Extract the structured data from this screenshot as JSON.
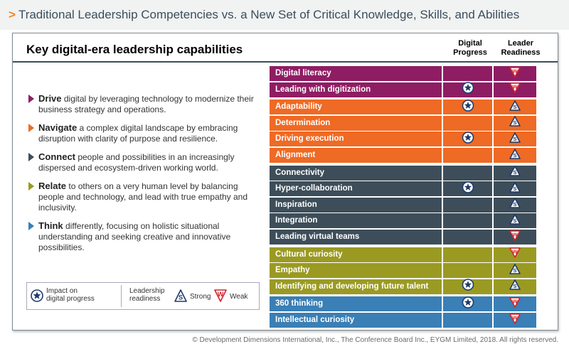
{
  "header": {
    "chevron": ">",
    "title": "Traditional Leadership Competencies vs. a New Set of Critical Knowledge, Skills, and Abilities"
  },
  "panel": {
    "title": "Key digital-era leadership capabilities",
    "col_digital_1": "Digital",
    "col_digital_2": "Progress",
    "col_leader_1": "Leader",
    "col_leader_2": "Readiness"
  },
  "colors": {
    "purple": "#8f1d63",
    "orange": "#ef6a24",
    "slate": "#3d4e5a",
    "olive": "#9a9a23",
    "blue": "#3a7fb5"
  },
  "bullets": [
    {
      "bold": "Drive",
      "text": " digital by leveraging technology to modernize their business strategy and operations.",
      "color": "#8f1d63"
    },
    {
      "bold": "Navigate",
      "text": " a complex digital landscape by embracing disruption with clarity of purpose and resilience.",
      "color": "#ef6a24"
    },
    {
      "bold": "Connect",
      "text": " people and possibilities in an increasingly dispersed and ecosystem-driven working world.",
      "color": "#3d4e5a"
    },
    {
      "bold": "Relate",
      "text": " to others on a very human level by balancing people and technology, and lead with true empathy and inclusivity.",
      "color": "#9a9a23"
    },
    {
      "bold": "Think",
      "text": " differently, focusing on holistic situational understanding and seeking creative and innovative possibilities.",
      "color": "#3a7fb5"
    }
  ],
  "legend": {
    "impact_1": "Impact on",
    "impact_2": "digital progress",
    "readiness_1": "Leadership",
    "readiness_2": "readiness",
    "strong": "Strong",
    "weak": "Weak",
    "strong_letter": "S",
    "weak_letter": "W"
  },
  "rows": [
    {
      "label": "Digital literacy",
      "group": "purple",
      "star": false,
      "readiness": "weak"
    },
    {
      "label": "Leading with digitization",
      "group": "purple",
      "star": true,
      "readiness": "weak"
    },
    {
      "label": "Adaptability",
      "group": "orange",
      "star": true,
      "readiness": "strong"
    },
    {
      "label": "Determination",
      "group": "orange",
      "star": false,
      "readiness": "strong"
    },
    {
      "label": "Driving execution",
      "group": "orange",
      "star": true,
      "readiness": "strong"
    },
    {
      "label": "Alignment",
      "group": "orange",
      "star": false,
      "readiness": "strong"
    },
    {
      "label": "Connectivity",
      "group": "slate",
      "star": false,
      "readiness": "strong"
    },
    {
      "label": "Hyper-collaboration",
      "group": "slate",
      "star": true,
      "readiness": "strong"
    },
    {
      "label": "Inspiration",
      "group": "slate",
      "star": false,
      "readiness": "strong"
    },
    {
      "label": "Integration",
      "group": "slate",
      "star": false,
      "readiness": "strong"
    },
    {
      "label": "Leading virtual teams",
      "group": "slate",
      "star": false,
      "readiness": "weak"
    },
    {
      "label": "Cultural curiosity",
      "group": "olive",
      "star": false,
      "readiness": "weak"
    },
    {
      "label": "Empathy",
      "group": "olive",
      "star": false,
      "readiness": "strong"
    },
    {
      "label": "Identifying and developing future talent",
      "group": "olive",
      "star": true,
      "readiness": "strong"
    },
    {
      "label": "360 thinking",
      "group": "blue",
      "star": true,
      "readiness": "weak"
    },
    {
      "label": "Intellectual curiosity",
      "group": "blue",
      "star": false,
      "readiness": "weak"
    }
  ],
  "copyright": "© Development Dimensions International, Inc., The Conference Board Inc., EYGM Limited, 2018. All rights reserved."
}
